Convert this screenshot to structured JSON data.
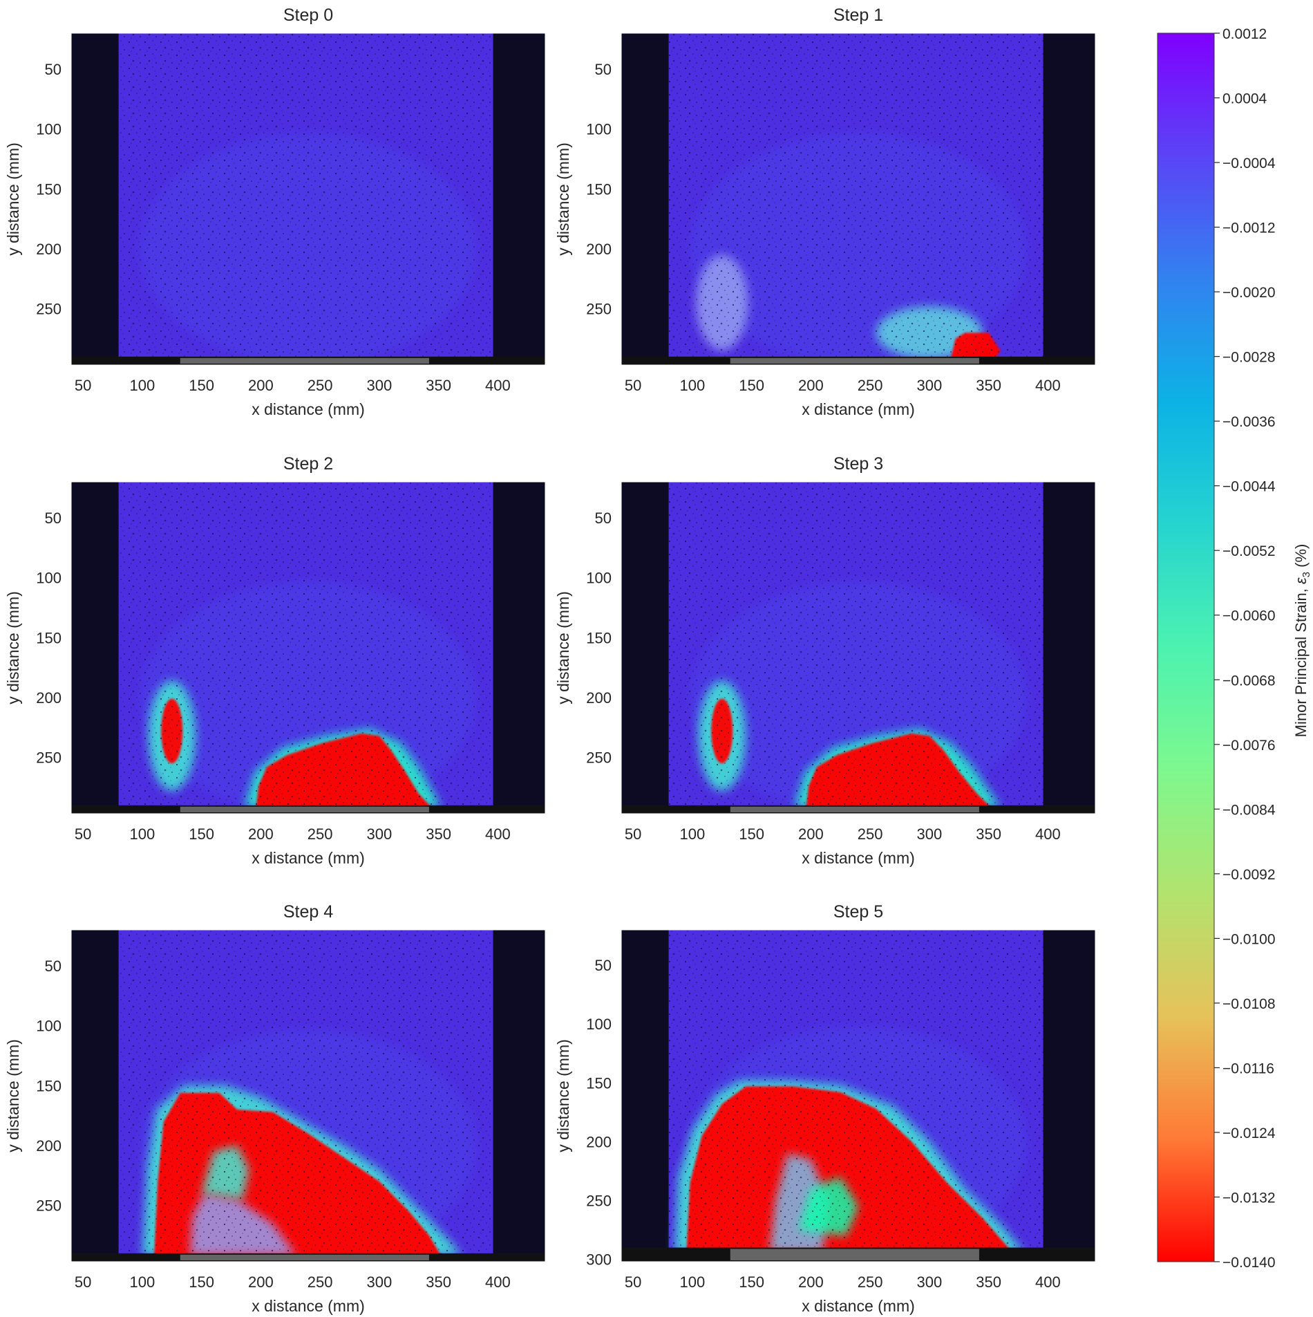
{
  "chart_data": {
    "type": "heatmap",
    "panels": [
      {
        "title": "Step 0",
        "xlabel": "x distance (mm)",
        "ylabel": "y distance (mm)",
        "xlim": [
          40,
          440
        ],
        "ylim": [
          297,
          20
        ],
        "xticks": [
          50,
          100,
          150,
          200,
          250,
          300,
          350,
          400
        ],
        "yticks": [
          50,
          100,
          150,
          200,
          250
        ],
        "regions": []
      },
      {
        "title": "Step 1",
        "xlabel": "x distance (mm)",
        "ylabel": "y distance (mm)",
        "xlim": [
          40,
          440
        ],
        "ylim": [
          297,
          20
        ],
        "xticks": [
          50,
          100,
          150,
          200,
          250,
          300,
          350,
          400
        ],
        "yticks": [
          50,
          100,
          150,
          200,
          250
        ],
        "regions": [
          {
            "kind": "ellipse",
            "cx": 300,
            "cy": 270,
            "rx": 45,
            "ry": 22,
            "strain": -0.0036
          },
          {
            "kind": "ellipse",
            "cx": 125,
            "cy": 245,
            "rx": 22,
            "ry": 40,
            "strain": -0.002
          },
          {
            "kind": "polygon",
            "strain": -0.014,
            "points": [
              [
                318,
                292
              ],
              [
                322,
                275
              ],
              [
                330,
                270
              ],
              [
                350,
                270
              ],
              [
                360,
                285
              ],
              [
                355,
                292
              ]
            ]
          }
        ]
      },
      {
        "title": "Step 2",
        "xlabel": "x distance (mm)",
        "ylabel": "y distance (mm)",
        "xlim": [
          40,
          440
        ],
        "ylim": [
          297,
          20
        ],
        "xticks": [
          50,
          100,
          150,
          200,
          250,
          300,
          350,
          400
        ],
        "yticks": [
          50,
          100,
          150,
          200,
          250
        ],
        "regions": [
          {
            "kind": "polygon",
            "strain": -0.0052,
            "points": [
              [
                186,
                292
              ],
              [
                195,
                262
              ],
              [
                218,
                242
              ],
              [
                255,
                232
              ],
              [
                292,
                226
              ],
              [
                318,
                238
              ],
              [
                332,
                256
              ],
              [
                346,
                280
              ],
              [
                352,
                292
              ]
            ]
          },
          {
            "kind": "polygon",
            "strain": -0.014,
            "points": [
              [
                196,
                292
              ],
              [
                198,
                274
              ],
              [
                205,
                258
              ],
              [
                222,
                248
              ],
              [
                252,
                238
              ],
              [
                285,
                230
              ],
              [
                300,
                232
              ],
              [
                310,
                244
              ],
              [
                322,
                262
              ],
              [
                333,
                280
              ],
              [
                344,
                292
              ]
            ]
          },
          {
            "kind": "ellipse",
            "cx": 125,
            "cy": 232,
            "rx": 20,
            "ry": 46,
            "strain": -0.0044
          },
          {
            "kind": "ellipse",
            "cx": 125,
            "cy": 228,
            "rx": 9,
            "ry": 27,
            "strain": -0.014
          }
        ]
      },
      {
        "title": "Step 3",
        "xlabel": "x distance (mm)",
        "ylabel": "y distance (mm)",
        "xlim": [
          40,
          440
        ],
        "ylim": [
          297,
          20
        ],
        "xticks": [
          50,
          100,
          150,
          200,
          250,
          300,
          350,
          400
        ],
        "yticks": [
          50,
          100,
          150,
          200,
          250
        ],
        "regions": [
          {
            "kind": "polygon",
            "strain": -0.0052,
            "points": [
              [
                186,
                292
              ],
              [
                195,
                262
              ],
              [
                218,
                242
              ],
              [
                255,
                232
              ],
              [
                292,
                226
              ],
              [
                318,
                238
              ],
              [
                335,
                256
              ],
              [
                352,
                280
              ],
              [
                360,
                292
              ]
            ]
          },
          {
            "kind": "polygon",
            "strain": -0.014,
            "points": [
              [
                196,
                292
              ],
              [
                198,
                274
              ],
              [
                205,
                258
              ],
              [
                222,
                248
              ],
              [
                252,
                238
              ],
              [
                285,
                230
              ],
              [
                300,
                232
              ],
              [
                312,
                244
              ],
              [
                325,
                262
              ],
              [
                340,
                280
              ],
              [
                352,
                292
              ]
            ]
          },
          {
            "kind": "ellipse",
            "cx": 125,
            "cy": 232,
            "rx": 20,
            "ry": 46,
            "strain": -0.0044
          },
          {
            "kind": "ellipse",
            "cx": 125,
            "cy": 228,
            "rx": 9,
            "ry": 27,
            "strain": -0.014
          }
        ]
      },
      {
        "title": "Step 4",
        "xlabel": "x distance (mm)",
        "ylabel": "y distance (mm)",
        "xlim": [
          40,
          440
        ],
        "ylim": [
          297,
          20
        ],
        "xticks": [
          50,
          100,
          150,
          200,
          250,
          300,
          350,
          400
        ],
        "yticks": [
          50,
          100,
          150,
          200,
          250
        ],
        "regions": [
          {
            "kind": "polygon",
            "strain": -0.0044,
            "points": [
              [
                100,
                292
              ],
              [
                104,
                220
              ],
              [
                112,
                170
              ],
              [
                135,
                150
              ],
              [
                170,
                150
              ],
              [
                200,
                160
              ],
              [
                235,
                180
              ],
              [
                270,
                200
              ],
              [
                300,
                220
              ],
              [
                330,
                250
              ],
              [
                355,
                275
              ],
              [
                370,
                292
              ]
            ]
          },
          {
            "kind": "polygon",
            "strain": -0.014,
            "points": [
              [
                110,
                292
              ],
              [
                113,
                230
              ],
              [
                118,
                180
              ],
              [
                132,
                156
              ],
              [
                165,
                156
              ],
              [
                180,
                170
              ],
              [
                210,
                172
              ],
              [
                240,
                190
              ],
              [
                270,
                210
              ],
              [
                300,
                230
              ],
              [
                325,
                255
              ],
              [
                342,
                275
              ],
              [
                352,
                292
              ]
            ]
          },
          {
            "kind": "polygon",
            "strain": -0.002,
            "points": [
              [
                140,
                292
              ],
              [
                142,
                260
              ],
              [
                152,
                240
              ],
              [
                180,
                245
              ],
              [
                210,
                265
              ],
              [
                230,
                292
              ]
            ]
          },
          {
            "kind": "polygon",
            "strain": -0.0044,
            "points": [
              [
                150,
                240
              ],
              [
                160,
                205
              ],
              [
                180,
                200
              ],
              [
                190,
                220
              ],
              [
                185,
                245
              ]
            ]
          }
        ]
      },
      {
        "title": "Step 5",
        "xlabel": "x distance (mm)",
        "ylabel": "y distance (mm)",
        "xlim": [
          40,
          440
        ],
        "ylim": [
          302,
          20
        ],
        "xticks": [
          50,
          100,
          150,
          200,
          250,
          300,
          350,
          400
        ],
        "yticks": [
          50,
          100,
          150,
          200,
          250,
          300
        ],
        "regions": [
          {
            "kind": "polygon",
            "strain": -0.0044,
            "points": [
              [
                85,
                294
              ],
              [
                88,
                230
              ],
              [
                100,
                190
              ],
              [
                120,
                160
              ],
              [
                140,
                148
              ],
              [
                180,
                148
              ],
              [
                225,
                152
              ],
              [
                270,
                170
              ],
              [
                300,
                200
              ],
              [
                330,
                240
              ],
              [
                360,
                270
              ],
              [
                380,
                294
              ]
            ]
          },
          {
            "kind": "polygon",
            "strain": -0.014,
            "points": [
              [
                95,
                294
              ],
              [
                98,
                235
              ],
              [
                108,
                195
              ],
              [
                125,
                168
              ],
              [
                145,
                153
              ],
              [
                185,
                153
              ],
              [
                225,
                158
              ],
              [
                255,
                172
              ],
              [
                285,
                200
              ],
              [
                315,
                235
              ],
              [
                345,
                265
              ],
              [
                370,
                294
              ]
            ]
          },
          {
            "kind": "polygon",
            "strain": -0.0028,
            "points": [
              [
                165,
                294
              ],
              [
                170,
                250
              ],
              [
                180,
                210
              ],
              [
                200,
                215
              ],
              [
                215,
                250
              ],
              [
                210,
                294
              ]
            ]
          },
          {
            "kind": "polygon",
            "strain": -0.0068,
            "points": [
              [
                190,
                275
              ],
              [
                200,
                240
              ],
              [
                225,
                230
              ],
              [
                240,
                255
              ],
              [
                230,
                280
              ]
            ]
          }
        ]
      }
    ],
    "colorbar": {
      "label_main": "Minor Principal Strain, ",
      "label_symbol": "ε",
      "label_sub": "3",
      "label_unit": " (%)",
      "min": -0.014,
      "max": 0.0012,
      "ticks": [
        "0.0012",
        "0.0004",
        "−0.0004",
        "−0.0012",
        "−0.0020",
        "−0.0028",
        "−0.0036",
        "−0.0044",
        "−0.0052",
        "−0.0060",
        "−0.0068",
        "−0.0076",
        "−0.0084",
        "−0.0092",
        "−0.0100",
        "−0.0108",
        "−0.0116",
        "−0.0124",
        "−0.0132",
        "−0.0140"
      ],
      "colormap": "rainbow"
    }
  }
}
